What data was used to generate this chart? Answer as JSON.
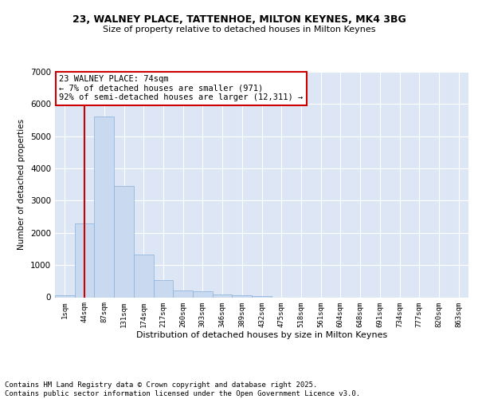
{
  "title_line1": "23, WALNEY PLACE, TATTENHOE, MILTON KEYNES, MK4 3BG",
  "title_line2": "Size of property relative to detached houses in Milton Keynes",
  "xlabel": "Distribution of detached houses by size in Milton Keynes",
  "ylabel": "Number of detached properties",
  "categories": [
    "1sqm",
    "44sqm",
    "87sqm",
    "131sqm",
    "174sqm",
    "217sqm",
    "260sqm",
    "303sqm",
    "346sqm",
    "389sqm",
    "432sqm",
    "475sqm",
    "518sqm",
    "561sqm",
    "604sqm",
    "648sqm",
    "691sqm",
    "734sqm",
    "777sqm",
    "820sqm",
    "863sqm"
  ],
  "values": [
    60,
    2300,
    5600,
    3450,
    1320,
    530,
    205,
    175,
    90,
    50,
    30,
    0,
    0,
    0,
    0,
    0,
    0,
    0,
    0,
    0,
    0
  ],
  "bar_color": "#c9d9f0",
  "bar_edge_color": "#8ab0d8",
  "vline_color": "#cc0000",
  "annotation_box_text": "23 WALNEY PLACE: 74sqm\n← 7% of detached houses are smaller (971)\n92% of semi-detached houses are larger (12,311) →",
  "annotation_box_color": "#cc0000",
  "annotation_text_fontsize": 7.5,
  "background_color": "#dce6f5",
  "ylim": [
    0,
    7000
  ],
  "yticks": [
    0,
    1000,
    2000,
    3000,
    4000,
    5000,
    6000,
    7000
  ],
  "footer_line1": "Contains HM Land Registry data © Crown copyright and database right 2025.",
  "footer_line2": "Contains public sector information licensed under the Open Government Licence v3.0.",
  "footer_fontsize": 6.5,
  "title_fontsize1": 9,
  "title_fontsize2": 8,
  "ylabel_fontsize": 7.5,
  "xlabel_fontsize": 8
}
